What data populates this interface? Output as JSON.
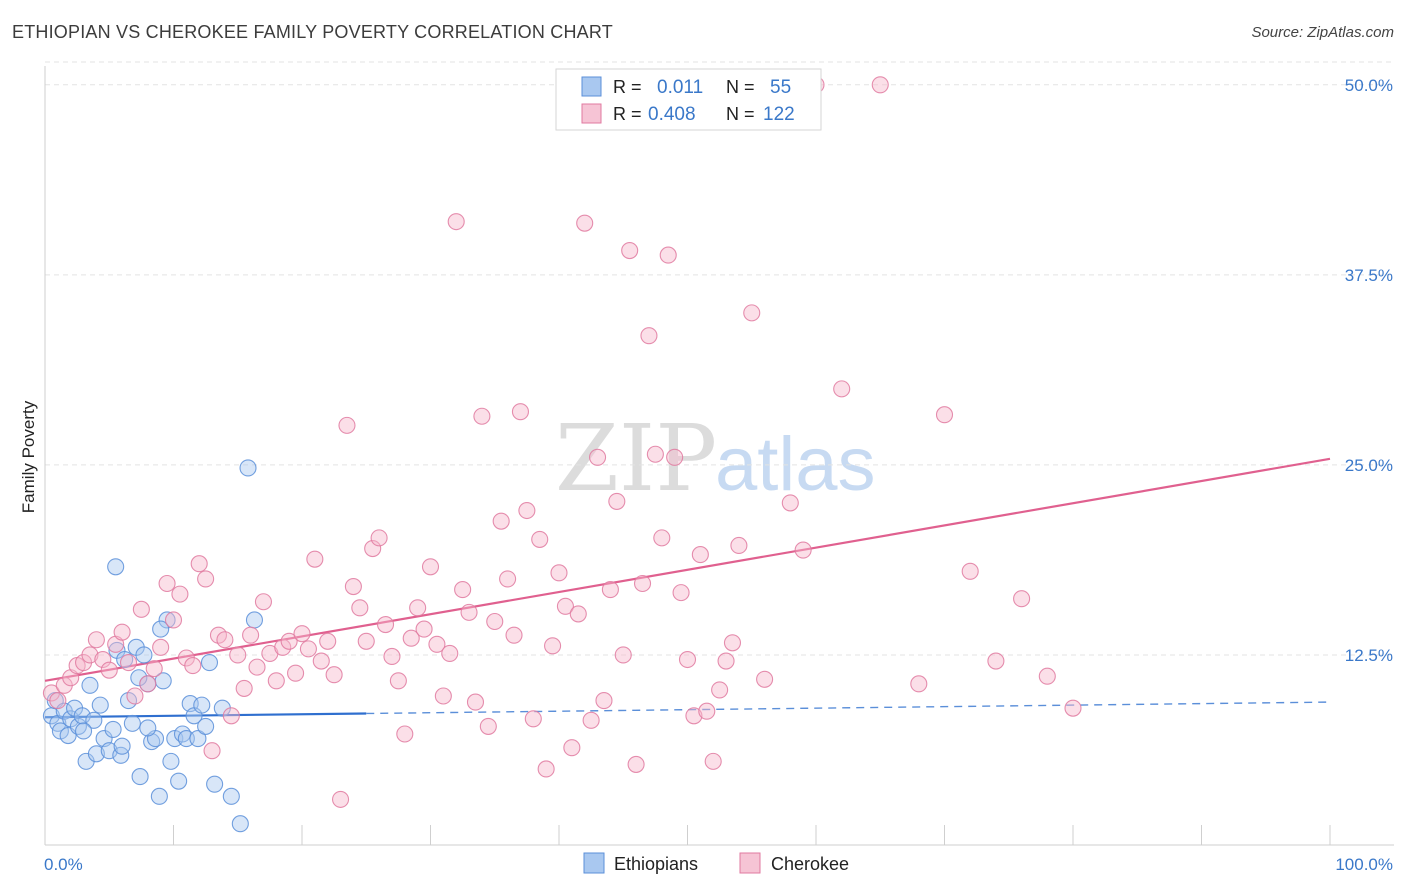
{
  "chart_data": {
    "type": "scatter",
    "title": "ETHIOPIAN VS CHEROKEE FAMILY POVERTY CORRELATION CHART",
    "source": "Source: ZipAtlas.com",
    "xlabel": "",
    "ylabel": "Family Poverty",
    "xlim": [
      0,
      100
    ],
    "ylim": [
      0,
      51.5
    ],
    "x_tick_labels": [
      {
        "value": 0,
        "label": "0.0%"
      },
      {
        "value": 100,
        "label": "100.0%"
      }
    ],
    "y_tick_labels": [
      {
        "value": 12.5,
        "label": "12.5%"
      },
      {
        "value": 25.0,
        "label": "25.0%"
      },
      {
        "value": 37.5,
        "label": "37.5%"
      },
      {
        "value": 50.0,
        "label": "50.0%"
      }
    ],
    "watermark": {
      "part1": "ZIP",
      "part2": "atlas"
    },
    "legend": {
      "r_label": "R =",
      "n_label": "N =",
      "entries": [
        {
          "r": "0.011",
          "n": "55"
        },
        {
          "r": "0.408",
          "n": "122"
        }
      ]
    },
    "series": [
      {
        "name": "Ethiopians",
        "color": "#5b8fd9",
        "fill": "#a9c8f0",
        "trend": {
          "x0": 0,
          "y0": 8.4,
          "x1": 25,
          "y1": 8.65,
          "x_end": 100,
          "y_end": 9.4
        },
        "points": [
          [
            0.5,
            8.5
          ],
          [
            0.8,
            9.5
          ],
          [
            1.0,
            8.0
          ],
          [
            1.2,
            7.5
          ],
          [
            1.5,
            8.8
          ],
          [
            1.8,
            7.2
          ],
          [
            2.0,
            8.3
          ],
          [
            2.3,
            9.0
          ],
          [
            2.6,
            7.8
          ],
          [
            2.9,
            8.5
          ],
          [
            3.2,
            5.5
          ],
          [
            3.5,
            10.5
          ],
          [
            3.8,
            8.2
          ],
          [
            4.0,
            6.0
          ],
          [
            4.3,
            9.2
          ],
          [
            4.6,
            7.0
          ],
          [
            5.0,
            6.2
          ],
          [
            5.3,
            7.6
          ],
          [
            5.6,
            12.8
          ],
          [
            5.9,
            5.9
          ],
          [
            6.2,
            12.2
          ],
          [
            6.5,
            9.5
          ],
          [
            6.8,
            8.0
          ],
          [
            7.1,
            13.0
          ],
          [
            7.4,
            4.5
          ],
          [
            7.7,
            12.5
          ],
          [
            8.0,
            10.6
          ],
          [
            8.3,
            6.8
          ],
          [
            8.6,
            7.0
          ],
          [
            8.9,
            3.2
          ],
          [
            9.2,
            10.8
          ],
          [
            9.5,
            14.8
          ],
          [
            9.8,
            5.5
          ],
          [
            10.1,
            7.0
          ],
          [
            10.4,
            4.2
          ],
          [
            10.7,
            7.3
          ],
          [
            11.0,
            7.0
          ],
          [
            11.3,
            9.3
          ],
          [
            11.6,
            8.5
          ],
          [
            11.9,
            7.0
          ],
          [
            12.2,
            9.2
          ],
          [
            12.5,
            7.8
          ],
          [
            12.8,
            12.0
          ],
          [
            13.2,
            4.0
          ],
          [
            13.8,
            9.0
          ],
          [
            14.5,
            3.2
          ],
          [
            15.2,
            1.4
          ],
          [
            15.8,
            24.8
          ],
          [
            16.3,
            14.8
          ],
          [
            7.3,
            11.0
          ],
          [
            3.0,
            7.5
          ],
          [
            5.5,
            18.3
          ],
          [
            9.0,
            14.2
          ],
          [
            8.0,
            7.7
          ],
          [
            6.0,
            6.5
          ]
        ]
      },
      {
        "name": "Cherokee",
        "color": "#e07aa0",
        "fill": "#f6b9cd",
        "trend": {
          "x0": 0,
          "y0": 10.8,
          "x1": 100,
          "y1": 25.4
        },
        "points": [
          [
            0.5,
            10.0
          ],
          [
            1.0,
            9.5
          ],
          [
            1.5,
            10.5
          ],
          [
            2.0,
            11.0
          ],
          [
            2.5,
            11.8
          ],
          [
            3.0,
            12.0
          ],
          [
            3.5,
            12.5
          ],
          [
            4.0,
            13.5
          ],
          [
            4.5,
            12.2
          ],
          [
            5.0,
            11.5
          ],
          [
            5.5,
            13.2
          ],
          [
            6.0,
            14.0
          ],
          [
            6.5,
            12.0
          ],
          [
            7.0,
            9.8
          ],
          [
            7.5,
            15.5
          ],
          [
            8.0,
            10.6
          ],
          [
            8.5,
            11.6
          ],
          [
            9.0,
            13.0
          ],
          [
            9.5,
            17.2
          ],
          [
            10.0,
            14.8
          ],
          [
            10.5,
            16.5
          ],
          [
            11.0,
            12.3
          ],
          [
            11.5,
            11.8
          ],
          [
            12.0,
            18.5
          ],
          [
            12.5,
            17.5
          ],
          [
            13.0,
            6.2
          ],
          [
            13.5,
            13.8
          ],
          [
            14.0,
            13.5
          ],
          [
            14.5,
            8.5
          ],
          [
            15.0,
            12.5
          ],
          [
            15.5,
            10.3
          ],
          [
            16.0,
            13.8
          ],
          [
            16.5,
            11.7
          ],
          [
            17.0,
            16.0
          ],
          [
            17.5,
            12.6
          ],
          [
            18.0,
            10.8
          ],
          [
            18.5,
            13.0
          ],
          [
            19.0,
            13.4
          ],
          [
            19.5,
            11.3
          ],
          [
            20.0,
            13.9
          ],
          [
            20.5,
            12.9
          ],
          [
            21.0,
            18.8
          ],
          [
            21.5,
            12.1
          ],
          [
            22.0,
            13.4
          ],
          [
            22.5,
            11.2
          ],
          [
            23.0,
            3.0
          ],
          [
            23.5,
            27.6
          ],
          [
            24.0,
            17.0
          ],
          [
            24.5,
            15.6
          ],
          [
            25.0,
            13.4
          ],
          [
            25.5,
            19.5
          ],
          [
            26.0,
            20.2
          ],
          [
            26.5,
            14.5
          ],
          [
            27.0,
            12.4
          ],
          [
            27.5,
            10.8
          ],
          [
            28.0,
            7.3
          ],
          [
            28.5,
            13.6
          ],
          [
            29.0,
            15.6
          ],
          [
            29.5,
            14.2
          ],
          [
            30.0,
            18.3
          ],
          [
            30.5,
            13.2
          ],
          [
            31.0,
            9.8
          ],
          [
            31.5,
            12.6
          ],
          [
            32.0,
            41.0
          ],
          [
            32.5,
            16.8
          ],
          [
            33.0,
            15.3
          ],
          [
            33.5,
            9.4
          ],
          [
            34.0,
            28.2
          ],
          [
            34.5,
            7.8
          ],
          [
            35.0,
            14.7
          ],
          [
            35.5,
            21.3
          ],
          [
            36.0,
            17.5
          ],
          [
            36.5,
            13.8
          ],
          [
            37.0,
            28.5
          ],
          [
            37.5,
            22.0
          ],
          [
            38.0,
            8.3
          ],
          [
            38.5,
            20.1
          ],
          [
            39.0,
            5.0
          ],
          [
            39.5,
            13.1
          ],
          [
            40.0,
            17.9
          ],
          [
            40.5,
            15.7
          ],
          [
            41.0,
            6.4
          ],
          [
            41.5,
            15.2
          ],
          [
            42.0,
            40.9
          ],
          [
            42.5,
            8.2
          ],
          [
            43.0,
            25.5
          ],
          [
            43.5,
            9.5
          ],
          [
            44.0,
            16.8
          ],
          [
            44.5,
            22.6
          ],
          [
            45.0,
            12.5
          ],
          [
            45.5,
            39.1
          ],
          [
            46.0,
            5.3
          ],
          [
            46.5,
            17.2
          ],
          [
            47.0,
            33.5
          ],
          [
            47.5,
            25.7
          ],
          [
            48.0,
            20.2
          ],
          [
            48.5,
            38.8
          ],
          [
            49.0,
            25.5
          ],
          [
            49.5,
            16.6
          ],
          [
            50.0,
            12.2
          ],
          [
            50.5,
            8.5
          ],
          [
            51.0,
            19.1
          ],
          [
            51.5,
            8.8
          ],
          [
            52.0,
            5.5
          ],
          [
            52.5,
            10.2
          ],
          [
            53.0,
            12.1
          ],
          [
            53.5,
            13.3
          ],
          [
            54.0,
            19.7
          ],
          [
            55.0,
            35.0
          ],
          [
            56.0,
            10.9
          ],
          [
            58.0,
            22.5
          ],
          [
            59.0,
            19.4
          ],
          [
            60.0,
            50.0
          ],
          [
            62.0,
            30.0
          ],
          [
            65.0,
            50.0
          ],
          [
            68.0,
            10.6
          ],
          [
            70.0,
            28.3
          ],
          [
            72.0,
            18.0
          ],
          [
            74.0,
            12.1
          ],
          [
            76.0,
            16.2
          ],
          [
            78.0,
            11.1
          ],
          [
            80.0,
            9.0
          ]
        ]
      }
    ],
    "legend_bottom": [
      "Ethiopians",
      "Cherokee"
    ]
  }
}
